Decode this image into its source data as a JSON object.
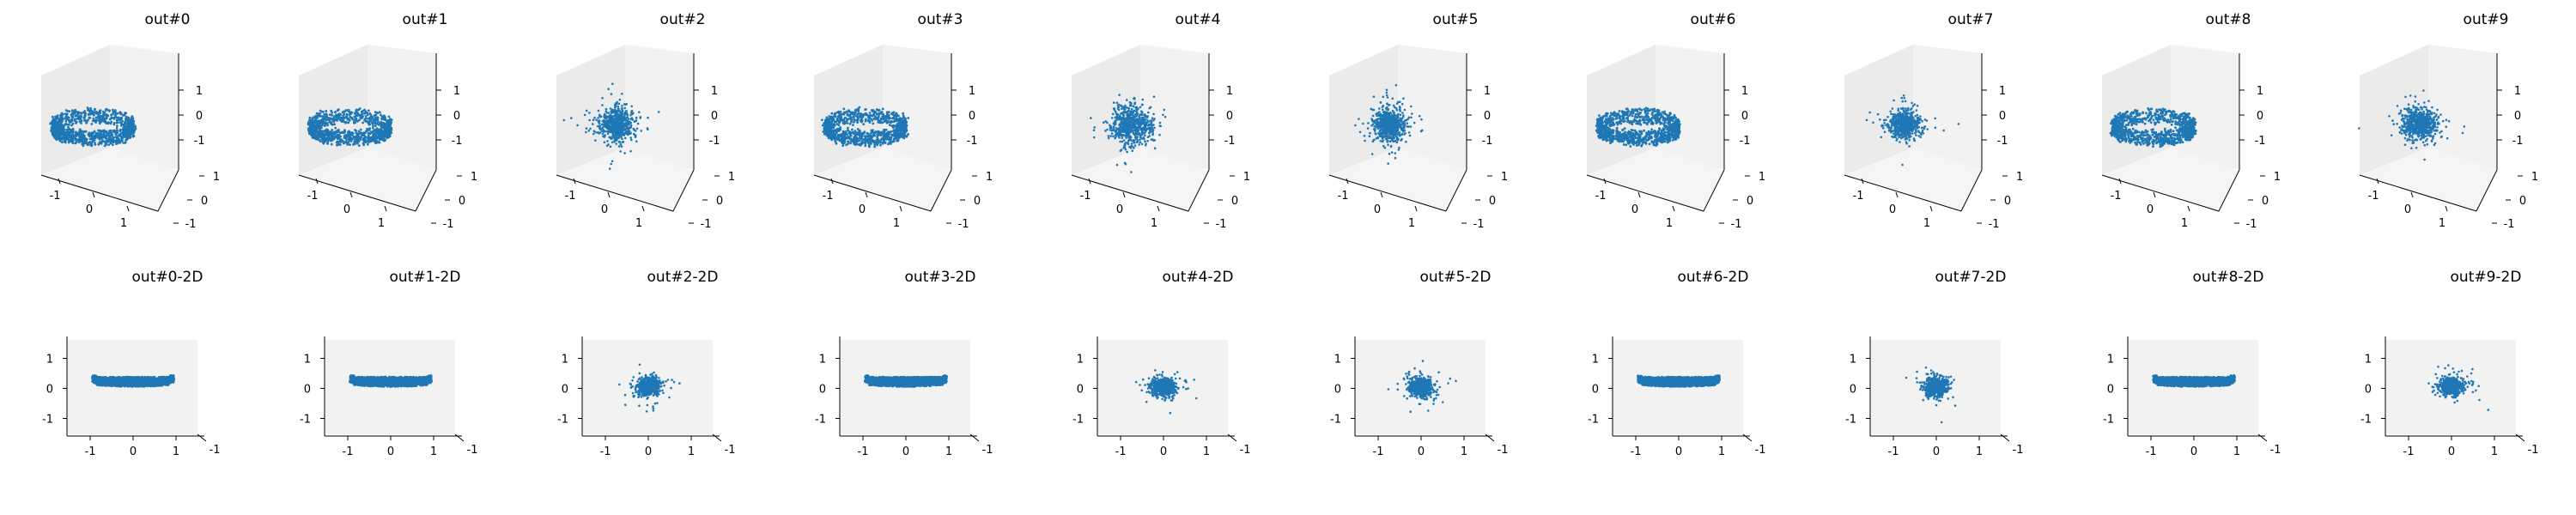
{
  "colors": {
    "series": "#1f77b4",
    "pane": "#f2f2f2",
    "axis": "#000000"
  },
  "chart_data": [
    {
      "type": "scatter",
      "projection": "3d",
      "title": "out#0",
      "shape": "ring",
      "ticks": [
        "-1",
        "0",
        "1"
      ],
      "grid": false
    },
    {
      "type": "scatter",
      "projection": "3d",
      "title": "out#1",
      "shape": "ring",
      "ticks": [
        "-1",
        "0",
        "1"
      ],
      "grid": false
    },
    {
      "type": "scatter",
      "projection": "3d",
      "title": "out#2",
      "shape": "cluster",
      "ticks": [
        "-1",
        "0",
        "1"
      ],
      "grid": false
    },
    {
      "type": "scatter",
      "projection": "3d",
      "title": "out#3",
      "shape": "ring",
      "ticks": [
        "-1",
        "0",
        "1"
      ],
      "grid": false
    },
    {
      "type": "scatter",
      "projection": "3d",
      "title": "out#4",
      "shape": "cluster",
      "ticks": [
        "-1",
        "0",
        "1"
      ],
      "grid": false
    },
    {
      "type": "scatter",
      "projection": "3d",
      "title": "out#5",
      "shape": "cluster",
      "ticks": [
        "-1",
        "0",
        "1"
      ],
      "grid": false
    },
    {
      "type": "scatter",
      "projection": "3d",
      "title": "out#6",
      "shape": "ring",
      "ticks": [
        "-1",
        "0",
        "1"
      ],
      "grid": false
    },
    {
      "type": "scatter",
      "projection": "3d",
      "title": "out#7",
      "shape": "cluster",
      "ticks": [
        "-1",
        "0",
        "1"
      ],
      "grid": false
    },
    {
      "type": "scatter",
      "projection": "3d",
      "title": "out#8",
      "shape": "ring",
      "ticks": [
        "-1",
        "0",
        "1"
      ],
      "grid": false
    },
    {
      "type": "scatter",
      "projection": "3d",
      "title": "out#9",
      "shape": "cluster",
      "ticks": [
        "-1",
        "0",
        "1"
      ],
      "grid": false
    },
    {
      "type": "scatter",
      "projection": "2d",
      "title": "out#0-2D",
      "shape": "band",
      "xlim": [
        -1.5,
        1.5
      ],
      "ylim": [
        -1.5,
        1.5
      ],
      "xticks": [
        "-1",
        "0",
        "1"
      ],
      "yticks": [
        "1",
        "0",
        "-1"
      ],
      "depth_tick": "-1",
      "grid": false
    },
    {
      "type": "scatter",
      "projection": "2d",
      "title": "out#1-2D",
      "shape": "band",
      "xlim": [
        -1.5,
        1.5
      ],
      "ylim": [
        -1.5,
        1.5
      ],
      "xticks": [
        "-1",
        "0",
        "1"
      ],
      "yticks": [
        "1",
        "0",
        "-1"
      ],
      "depth_tick": "-1",
      "grid": false
    },
    {
      "type": "scatter",
      "projection": "2d",
      "title": "out#2-2D",
      "shape": "cluster",
      "xlim": [
        -1.5,
        1.5
      ],
      "ylim": [
        -1.5,
        1.5
      ],
      "xticks": [
        "-1",
        "0",
        "1"
      ],
      "yticks": [
        "1",
        "0",
        "-1"
      ],
      "depth_tick": "-1",
      "grid": false
    },
    {
      "type": "scatter",
      "projection": "2d",
      "title": "out#3-2D",
      "shape": "band",
      "xlim": [
        -1.5,
        1.5
      ],
      "ylim": [
        -1.5,
        1.5
      ],
      "xticks": [
        "-1",
        "0",
        "1"
      ],
      "yticks": [
        "1",
        "0",
        "-1"
      ],
      "depth_tick": "-1",
      "grid": false
    },
    {
      "type": "scatter",
      "projection": "2d",
      "title": "out#4-2D",
      "shape": "cluster",
      "xlim": [
        -1.5,
        1.5
      ],
      "ylim": [
        -1.5,
        1.5
      ],
      "xticks": [
        "-1",
        "0",
        "1"
      ],
      "yticks": [
        "1",
        "0",
        "-1"
      ],
      "depth_tick": "-1",
      "grid": false
    },
    {
      "type": "scatter",
      "projection": "2d",
      "title": "out#5-2D",
      "shape": "cluster",
      "xlim": [
        -1.5,
        1.5
      ],
      "ylim": [
        -1.5,
        1.5
      ],
      "xticks": [
        "-1",
        "0",
        "1"
      ],
      "yticks": [
        "1",
        "0",
        "-1"
      ],
      "depth_tick": "-1",
      "grid": false
    },
    {
      "type": "scatter",
      "projection": "2d",
      "title": "out#6-2D",
      "shape": "band",
      "xlim": [
        -1.5,
        1.5
      ],
      "ylim": [
        -1.5,
        1.5
      ],
      "xticks": [
        "-1",
        "0",
        "1"
      ],
      "yticks": [
        "1",
        "0",
        "-1"
      ],
      "depth_tick": "-1",
      "grid": false
    },
    {
      "type": "scatter",
      "projection": "2d",
      "title": "out#7-2D",
      "shape": "cluster",
      "xlim": [
        -1.5,
        1.5
      ],
      "ylim": [
        -1.5,
        1.5
      ],
      "xticks": [
        "-1",
        "0",
        "1"
      ],
      "yticks": [
        "1",
        "0",
        "-1"
      ],
      "depth_tick": "-1",
      "grid": false
    },
    {
      "type": "scatter",
      "projection": "2d",
      "title": "out#8-2D",
      "shape": "band",
      "xlim": [
        -1.5,
        1.5
      ],
      "ylim": [
        -1.5,
        1.5
      ],
      "xticks": [
        "-1",
        "0",
        "1"
      ],
      "yticks": [
        "1",
        "0",
        "-1"
      ],
      "depth_tick": "-1",
      "grid": false
    },
    {
      "type": "scatter",
      "projection": "2d",
      "title": "out#9-2D",
      "shape": "cluster",
      "xlim": [
        -1.5,
        1.5
      ],
      "ylim": [
        -1.5,
        1.5
      ],
      "xticks": [
        "-1",
        "0",
        "1"
      ],
      "yticks": [
        "1",
        "0",
        "-1"
      ],
      "depth_tick": "-1",
      "grid": false
    }
  ]
}
